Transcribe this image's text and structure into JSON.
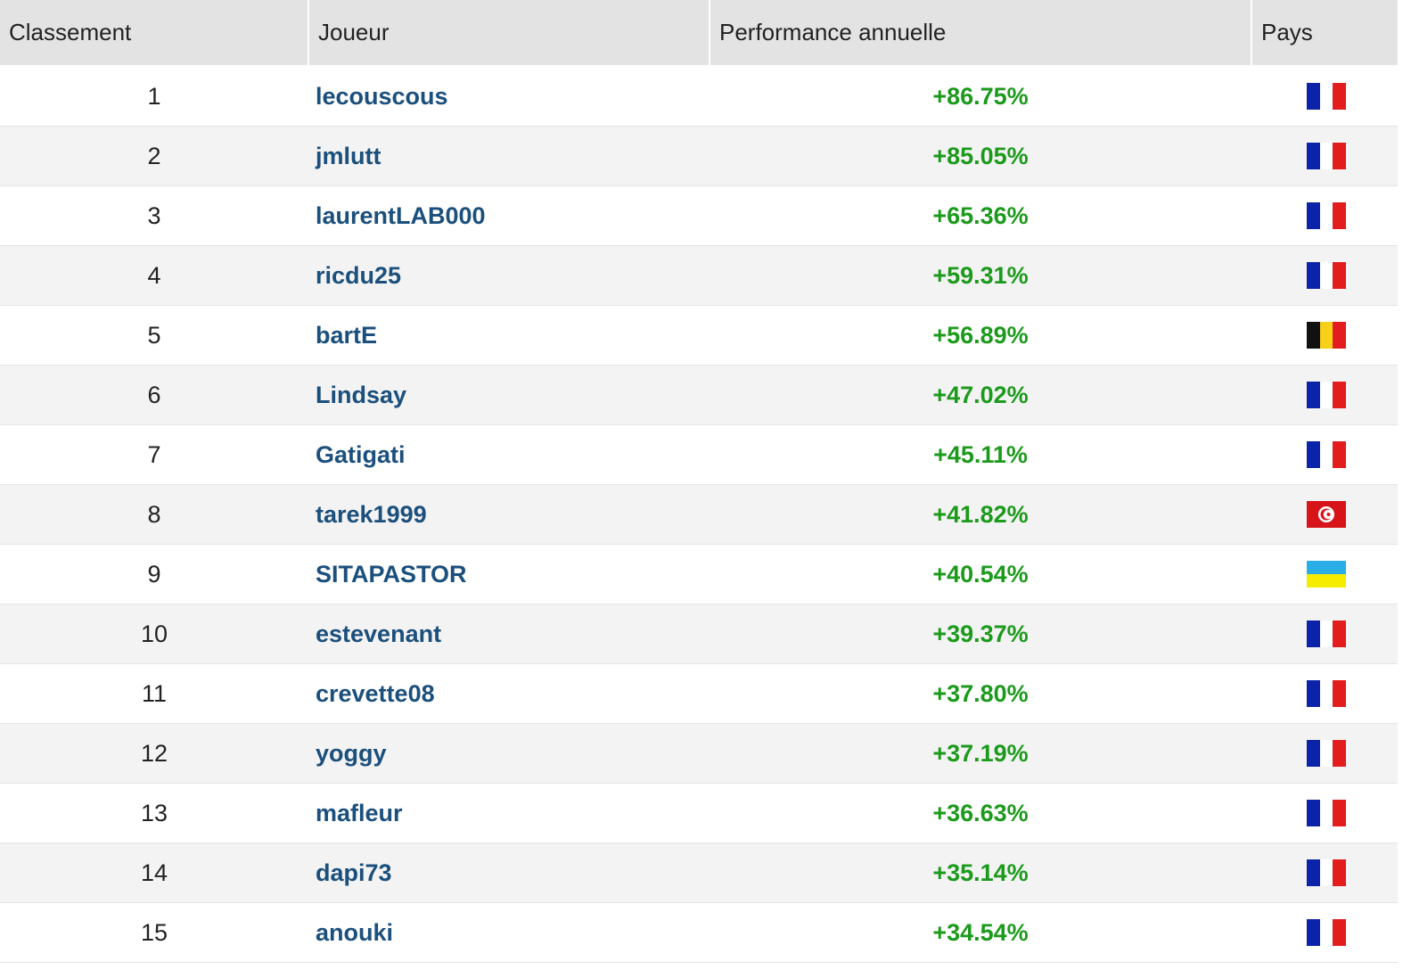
{
  "table": {
    "headers": [
      "Classement",
      "Joueur",
      "Performance annuelle",
      "Pays"
    ],
    "rows": [
      [
        1,
        "lecouscous",
        "+86.75%"
      ],
      [
        2,
        "jmlutt",
        "+85.05%"
      ],
      [
        3,
        "laurentLAB000",
        "+65.36%"
      ],
      [
        4,
        "ricdu25",
        "+59.31%"
      ],
      [
        5,
        "bartE",
        "+56.89%"
      ],
      [
        6,
        "Lindsay",
        "+47.02%"
      ],
      [
        7,
        "Gatigati",
        "+45.11%"
      ],
      [
        8,
        "tarek1999",
        "+41.82%"
      ],
      [
        9,
        "SITAPASTOR",
        "+40.54%"
      ],
      [
        10,
        "estevenant",
        "+39.37%"
      ],
      [
        11,
        "crevette08",
        "+37.80%"
      ],
      [
        12,
        "yoggy",
        "+37.19%"
      ],
      [
        13,
        "mafleur",
        "+36.63%"
      ],
      [
        14,
        "dapi73",
        "+35.14%"
      ],
      [
        15,
        "anouki",
        "+34.54%"
      ]
    ]
  }
}
